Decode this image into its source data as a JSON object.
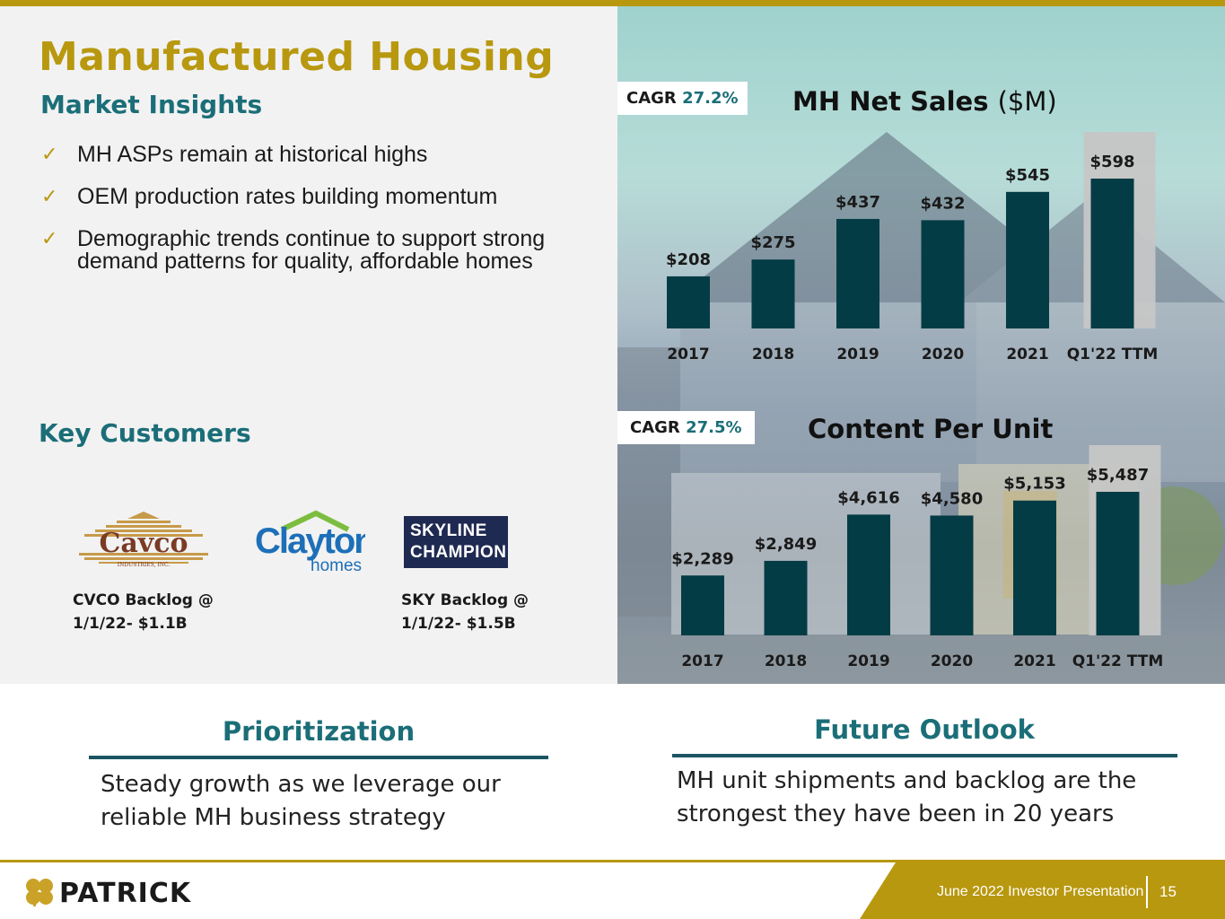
{
  "slide": {
    "title": "Manufactured Housing",
    "subtitle": "Market Insights",
    "bullets": [
      "MH ASPs remain at historical highs",
      "OEM production rates building momentum",
      "Demographic trends continue to support strong demand patterns for quality, affordable homes"
    ],
    "key_customers_label": "Key Customers"
  },
  "customers": {
    "cavco": {
      "name": "Cavco",
      "sub": "INDUSTRIES, INC.",
      "backlog_line1": "CVCO Backlog @",
      "backlog_line2": "1/1/22- $1.1B"
    },
    "clayton": {
      "name": "Clayton",
      "sub": "homes"
    },
    "skyline": {
      "line1": "SKYLINE",
      "line2": "CHAMPION",
      "backlog_line1": "SKY Backlog @",
      "backlog_line2": "1/1/22- $1.5B"
    }
  },
  "colors": {
    "gold": "#b8980f",
    "teal": "#1b6e78",
    "bar": "#043c45",
    "highlight": "#c6c6c6"
  },
  "chart_data": [
    {
      "type": "bar",
      "title": "MH Net Sales",
      "title_unit": "($M)",
      "cagr_label": "CAGR",
      "cagr_value": "27.2%",
      "categories": [
        "2017",
        "2018",
        "2019",
        "2020",
        "2021",
        "Q1'22 TTM"
      ],
      "values": [
        208,
        275,
        437,
        432,
        545,
        598
      ],
      "labels": [
        "$208",
        "$275",
        "$437",
        "$432",
        "$545",
        "$598"
      ],
      "highlight_index": 5,
      "ylim": [
        0,
        650
      ]
    },
    {
      "type": "bar",
      "title": "Content Per Unit",
      "title_unit": "",
      "cagr_label": "CAGR",
      "cagr_value": "27.5%",
      "categories": [
        "2017",
        "2018",
        "2019",
        "2020",
        "2021",
        "Q1'22 TTM"
      ],
      "values": [
        2289,
        2849,
        4616,
        4580,
        5153,
        5487
      ],
      "labels": [
        "$2,289",
        "$2,849",
        "$4,616",
        "$4,580",
        "$5,153",
        "$5,487"
      ],
      "highlight_index": 5,
      "ylim": [
        0,
        6100
      ]
    }
  ],
  "bottom": {
    "prioritization": {
      "heading": "Prioritization",
      "text": "Steady growth as we leverage our reliable MH business strategy"
    },
    "outlook": {
      "heading": "Future Outlook",
      "text": "MH unit shipments and backlog are the strongest they have been in 20 years"
    }
  },
  "footer": {
    "brand": "PATRICK",
    "presentation": "June 2022 Investor Presentation",
    "page": "15"
  }
}
